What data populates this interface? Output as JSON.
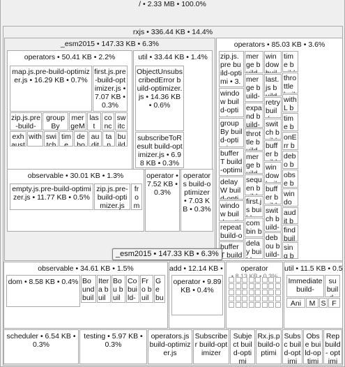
{
  "root": {
    "label": "/ • 2.33 MB • 100.0%"
  },
  "rxjs": {
    "label": "rxjs • 336.44 KB • 14.4%"
  },
  "esm2015": {
    "label": "_esm2015 • 147.33 KB • 6.3%",
    "operators_small": {
      "label": "operators • 50.41 KB • 2.2%",
      "map": "map.js.pre-build-optimizer.js • 16.29 KB • 0.7%",
      "first": "first.js.pre-build-optimizer.js • 7.07 KB • 0.3%",
      "row1": [
        "zip.js.pre-build-",
        "groupBy",
        "mergeMap",
        "last",
        "concat",
        "switch"
      ],
      "row2": [
        "exhaust",
        "with",
        "switch",
        "time",
        "debounce",
        "audit",
        "tap",
        "build"
      ]
    },
    "util": {
      "label": "util • 33.44 KB • 1.4%",
      "object_unsubscribed": "ObjectUnsubscribedError build-optimizer.js • 14.36 KB • 0.6%",
      "subscribe_to": "subscribeToResult build-optimizer.js • 6.98 KB • 0.3%"
    },
    "observable": {
      "label": "observable • 30.01 KB • 1.3%",
      "empty": "empty.js.pre-build-optimizer.js • 11.77 KB • 0.5%",
      "zip": "zip.js.pre-build-optimizer.js",
      "from": "from"
    },
    "operator": "operator • 7.52 KB • 0.3%",
    "operators_file": "operators build-optimizer • 7.03 KB • 0.3%",
    "operators_big": {
      "label": "operators • 85.03 KB • 3.6%",
      "col1": [
        "zip.js.pre build-optimi • 3.32",
        "window build-optimi",
        "groupBy build-optimi",
        "bufferT build-optimi",
        "delayW build-optimi",
        "window build-optimi",
        "repeat build-optimi",
        "bufferT build-"
      ],
      "col2": [
        "merge build-optim",
        "merge build-optim",
        "expand build-",
        "throttle build-",
        "merge build-",
        "sequen build-",
        "first.js build-",
        "combin build-",
        "delay build-"
      ],
      "col3": [
        "window build-optim",
        "last.js build-",
        "retry build-",
        "switch build-",
        "buffer build-",
        "window build-",
        "buffer build-",
        "switch build-",
        "debou build-"
      ],
      "col4": [
        "time build-",
        "throttle build-",
        "withL build-",
        "time build-",
        "onErr build-",
        "debo build-",
        "obse build-",
        "window build-",
        "audit build-",
        "find build-",
        "sing build-"
      ]
    }
  },
  "tooltip": "_esm2015 • 147.33 KB • 6.3%",
  "internal": {
    "observable": {
      "label": "observable • 34.61 KB • 1.5%",
      "dom": "dom • 8.58 KB • 0.4%",
      "small": [
        "Bound build- optim",
        "Itera build- optim",
        "Bou build- optim",
        "Co build- optim",
        "Fro build- optim",
        "Ge build- optim"
      ]
    },
    "add": {
      "label": "add • 12.14 KB • 0.5%",
      "operator": "operator • 9.89 KB • 0.4%"
    },
    "operator_grp": {
      "label": "operator",
      "sub": "• 8.13 KB • 0.3%"
    },
    "util": {
      "label": "util • 11.5 KB • 0.5%",
      "immediate": "Immediate build-",
      "su": "su build-",
      "row": [
        "Anim",
        "Ma",
        "S",
        "F"
      ]
    }
  },
  "bottom": [
    "scheduler • 6.54 KB • 0.3%",
    "testing • 5.97 KB • 0.3%",
    "operators.js build-optimizer.js",
    "Subscriber build-optimizer",
    "Subject build-optimi",
    "Rx.js.p build-optimi",
    "Subsc build-optimi",
    "Obse build-optimi",
    "Rep build- optimi"
  ]
}
